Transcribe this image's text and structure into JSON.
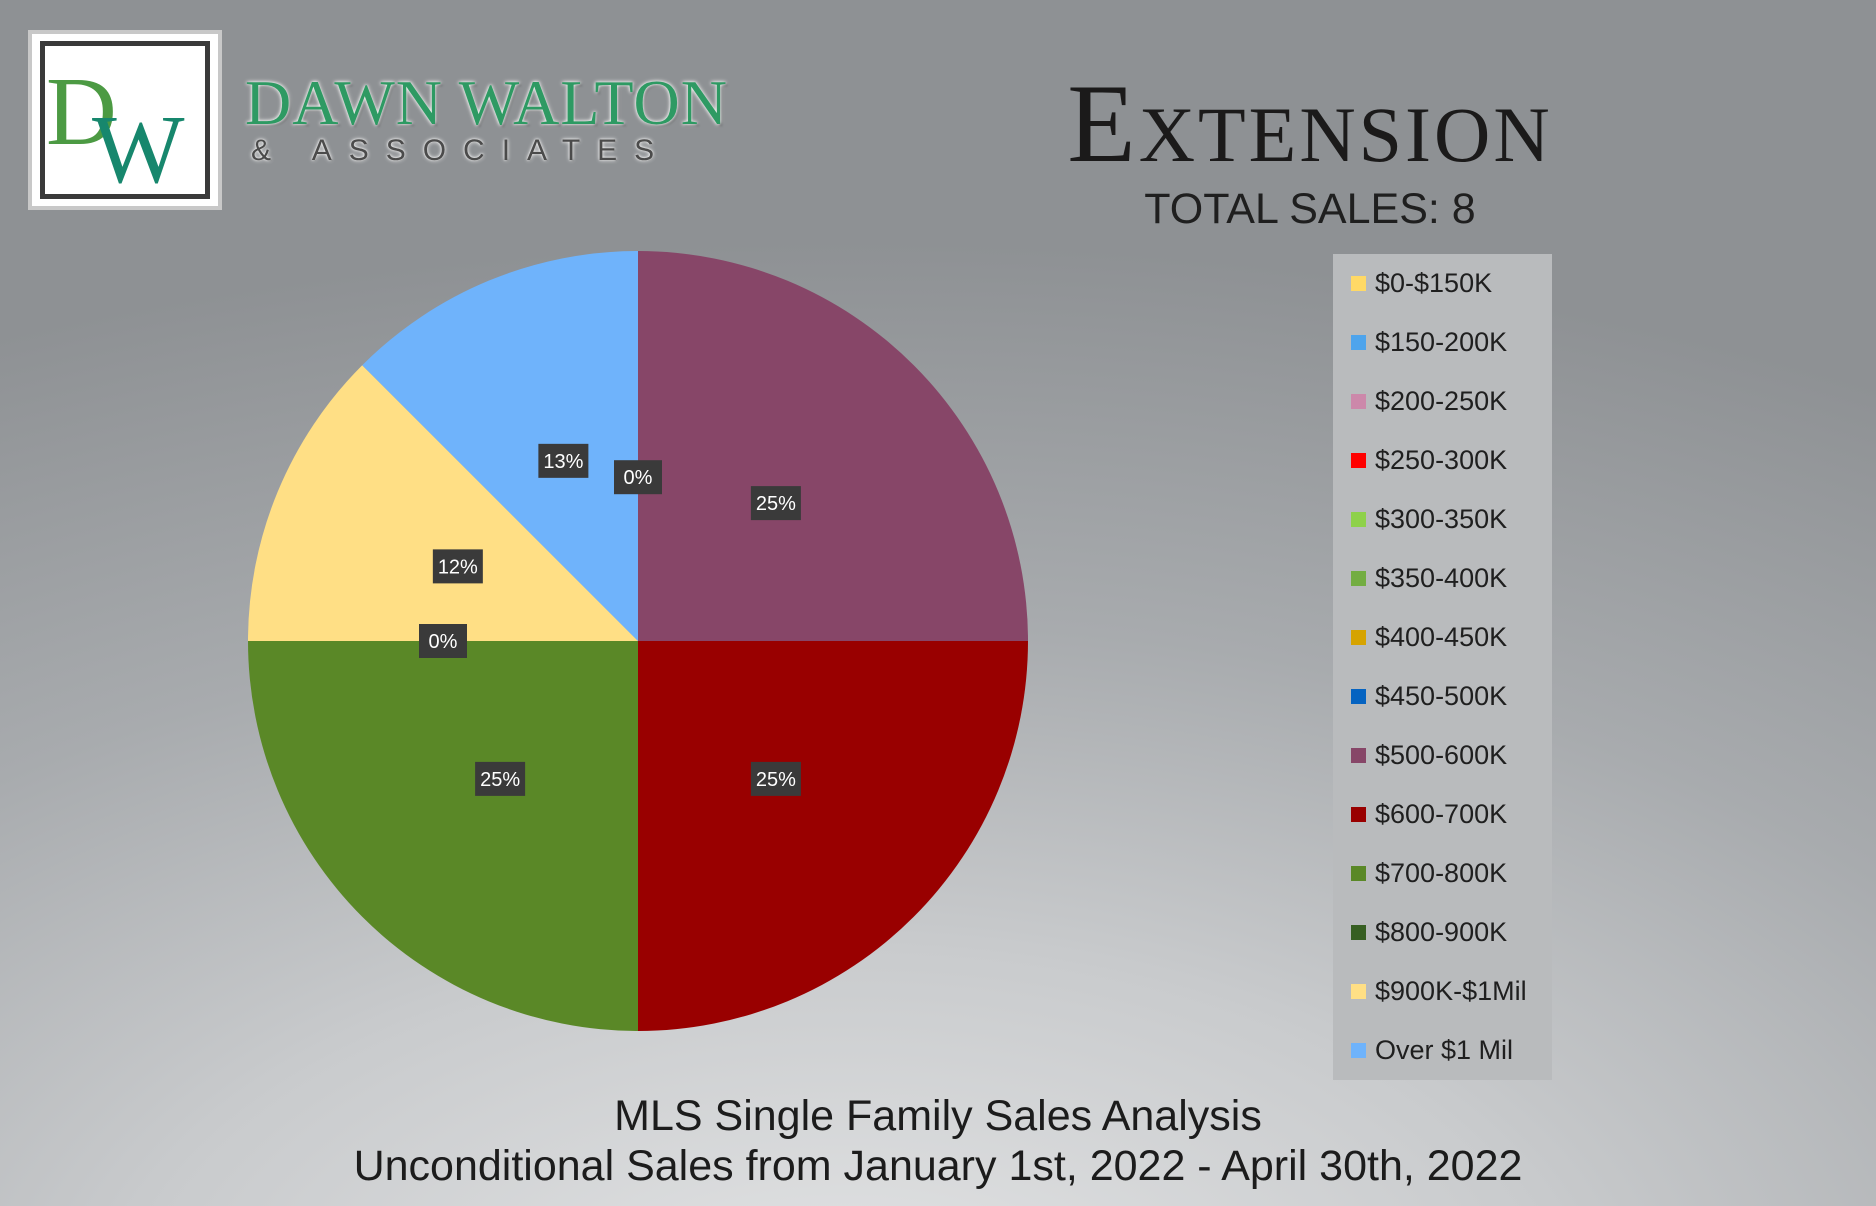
{
  "logo": {
    "monogram": "DW",
    "brand_name": "DAWN WALTON",
    "brand_sub": "& ASSOCIATES"
  },
  "header": {
    "title": "Extension",
    "total_sales": "TOTAL SALES: 8"
  },
  "footer": {
    "line1": "MLS Single Family Sales Analysis",
    "line2": "Unconditional Sales from January 1st, 2022 - April 30th, 2022"
  },
  "chart_data": {
    "type": "pie",
    "total_sales": 8,
    "legend_position": "right",
    "categories": [
      "$0-$150K",
      "$150-200K",
      "$200-250K",
      "$250-300K",
      "$300-350K",
      "$350-400K",
      "$400-450K",
      "$450-500K",
      "$500-600K",
      "$600-700K",
      "$700-800K",
      "$800-900K",
      "$900K-$1Mil",
      "Over $1 Mil"
    ],
    "colors": [
      "#ffd966",
      "#4ea4ec",
      "#cc88aa",
      "#ff0000",
      "#8ed14a",
      "#73ad42",
      "#d6a300",
      "#0563c1",
      "#874668",
      "#990000",
      "#5a8827",
      "#375f22",
      "#ffdf85",
      "#6fb3fb"
    ],
    "values": [
      0,
      0,
      0,
      0,
      0,
      0,
      0,
      0,
      2,
      2,
      2,
      0,
      1,
      1
    ],
    "percent_labels": [
      "",
      "",
      "",
      "",
      "",
      "",
      "",
      "",
      "25%",
      "25%",
      "25%",
      "0%",
      "12%",
      "13%"
    ],
    "extra_labels": [
      {
        "text": "0%"
      }
    ]
  }
}
